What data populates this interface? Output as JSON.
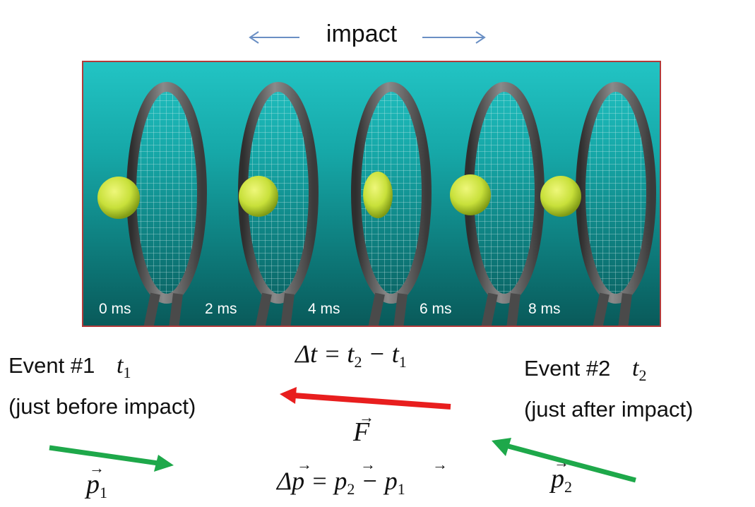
{
  "header": {
    "impact_label": "impact"
  },
  "frames": [
    {
      "label": "0 ms"
    },
    {
      "label": "2 ms"
    },
    {
      "label": "4 ms"
    },
    {
      "label": "6 ms"
    },
    {
      "label": "8 ms"
    }
  ],
  "events": {
    "event1": {
      "title": "Event #1",
      "time_var": "t",
      "time_sub": "1",
      "note": "(just before impact)"
    },
    "event2": {
      "title": "Event #2",
      "time_var": "t",
      "time_sub": "2",
      "note": "(just after impact)"
    }
  },
  "equations": {
    "delta_t": {
      "lhs": "Δt = t",
      "sub2": "2",
      "mid": " − t",
      "sub1": "1"
    },
    "force": {
      "symbol": "F"
    },
    "delta_p": {
      "lhs": "Δp = p",
      "sub2": "2",
      "mid": " − p",
      "sub1": "1"
    },
    "p1": {
      "symbol": "p",
      "sub": "1"
    },
    "p2": {
      "symbol": "p",
      "sub": "2"
    }
  },
  "colors": {
    "panel_border": "#b23a3a",
    "force_arrow": "#e81e1e",
    "momentum_arrow": "#1ea84a",
    "impact_arrow": "#6a8fc4",
    "ball": "#c8e03a",
    "racket": "#555555"
  }
}
